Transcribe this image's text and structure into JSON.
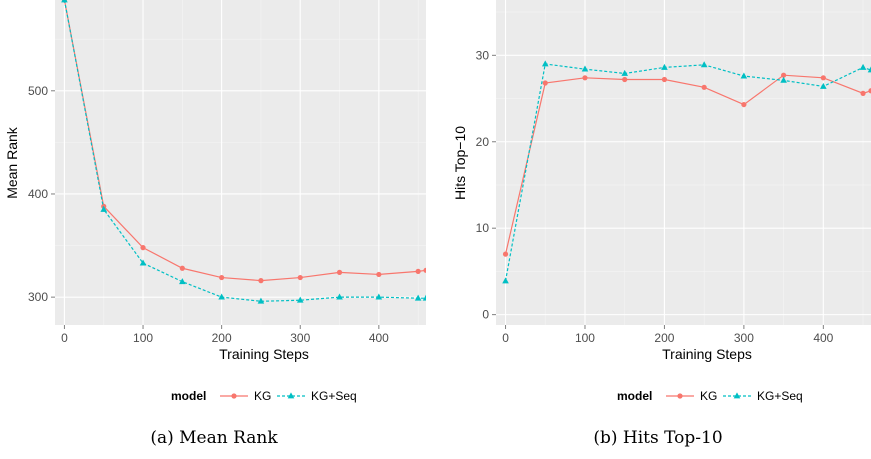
{
  "colors": {
    "KG": "#f8766d",
    "KG+Seq": "#00bfc4"
  },
  "chart_data": [
    {
      "type": "line",
      "caption": "(a) Mean Rank",
      "xlabel": "Training Steps",
      "ylabel": "Mean Rank",
      "xlim": [
        -12,
        460
      ],
      "ylim": [
        273,
        588
      ],
      "xticks": [
        0,
        100,
        200,
        300,
        400
      ],
      "yticks": [
        300,
        400,
        500
      ],
      "x": [
        0,
        50,
        100,
        150,
        200,
        250,
        300,
        350,
        400,
        450,
        460
      ],
      "series": [
        {
          "name": "KG",
          "line": "solid",
          "marker": "circle",
          "values": [
            588,
            388,
            348,
            328,
            319,
            316,
            319,
            324,
            322,
            325,
            326
          ]
        },
        {
          "name": "KG+Seq",
          "line": "dashed",
          "marker": "triangle",
          "values": [
            588,
            385,
            333,
            315,
            300,
            296,
            297,
            300,
            300,
            299,
            299
          ]
        }
      ],
      "legend": {
        "title": "model",
        "position": "bottom",
        "items": [
          "KG",
          "KG+Seq"
        ]
      }
    },
    {
      "type": "line",
      "caption": "(b) Hits Top-10",
      "xlabel": "Training Steps",
      "ylabel": "Hits Top−10",
      "xlim": [
        -12,
        460
      ],
      "ylim": [
        -1.2,
        36.4
      ],
      "xticks": [
        0,
        100,
        200,
        300,
        400
      ],
      "yticks": [
        0,
        10,
        20,
        30
      ],
      "x": [
        0,
        50,
        100,
        150,
        200,
        250,
        300,
        350,
        400,
        450,
        460
      ],
      "series": [
        {
          "name": "KG",
          "line": "solid",
          "marker": "circle",
          "values": [
            7.0,
            26.8,
            27.4,
            27.2,
            27.2,
            26.3,
            24.3,
            27.7,
            27.4,
            25.6,
            25.9
          ]
        },
        {
          "name": "KG+Seq",
          "line": "dashed",
          "marker": "triangle",
          "values": [
            3.9,
            29.0,
            28.4,
            27.9,
            28.6,
            28.9,
            27.6,
            27.1,
            26.4,
            28.6,
            28.3
          ]
        }
      ],
      "legend": {
        "title": "model",
        "position": "bottom",
        "items": [
          "KG",
          "KG+Seq"
        ]
      }
    }
  ]
}
